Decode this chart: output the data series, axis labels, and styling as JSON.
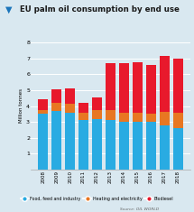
{
  "title": "EU palm oil consumption by end use",
  "title_marker": "▼",
  "years": [
    "2008",
    "2009",
    "2010",
    "2011",
    "2012",
    "2013",
    "2014",
    "2015",
    "2016",
    "2017",
    "2018"
  ],
  "food_feed_industry": [
    3.5,
    3.7,
    3.6,
    3.1,
    3.2,
    3.1,
    3.0,
    3.0,
    3.0,
    2.8,
    2.6
  ],
  "heating_electricity": [
    0.25,
    0.5,
    0.55,
    0.45,
    0.55,
    0.65,
    0.6,
    0.55,
    0.5,
    0.85,
    0.95
  ],
  "biodiesel": [
    0.65,
    0.85,
    0.95,
    0.65,
    0.8,
    2.95,
    3.1,
    3.2,
    3.1,
    3.5,
    3.45
  ],
  "colors": {
    "food": "#29ABE2",
    "heating": "#E87722",
    "biodiesel": "#E8192C"
  },
  "ylabel": "Million tonnes",
  "ylim": [
    0,
    8
  ],
  "yticks": [
    0,
    1,
    2,
    3,
    4,
    5,
    6,
    7,
    8
  ],
  "background_color": "#D9E8F0",
  "title_color": "#1a1a1a",
  "title_marker_color": "#1B75BB",
  "source_text": "Source: OIL WORLD",
  "legend_labels": [
    "Food, feed and industry",
    "Heating and electricity",
    "Biodiesel"
  ]
}
